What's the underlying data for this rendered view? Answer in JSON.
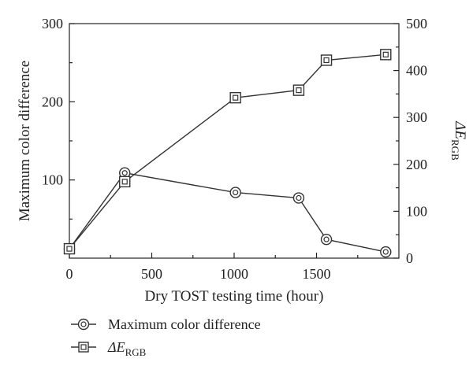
{
  "chart_data": {
    "type": "line",
    "xlabel": "Dry TOST testing time (hour)",
    "ylabel_left": "Maximum color difference",
    "ylabel_right_main": "ΔE",
    "ylabel_right_sub": "RGB",
    "xlim": [
      0,
      2000
    ],
    "ylim_left": [
      0,
      300
    ],
    "ylim_right": [
      0,
      500
    ],
    "x_ticks": [
      0,
      500,
      1000,
      1500
    ],
    "x_minor_ticks": [
      250,
      750,
      1250,
      1750
    ],
    "y_left_ticks": [
      100,
      200,
      300
    ],
    "y_left_minor_ticks": [
      50,
      150,
      250
    ],
    "y_right_ticks": [
      0,
      100,
      200,
      300,
      400,
      500
    ],
    "y_right_minor_ticks": [
      50,
      150,
      250,
      350,
      450
    ],
    "series": [
      {
        "name": "Maximum color difference",
        "axis": "left",
        "marker": "double-circle",
        "x": [
          0,
          336,
          1008,
          1392,
          1560,
          1920
        ],
        "y": [
          12,
          109,
          84,
          77,
          24,
          8
        ]
      },
      {
        "name_main": "ΔE",
        "name_sub": "RGB",
        "axis": "right",
        "marker": "double-square",
        "x": [
          0,
          336,
          1008,
          1392,
          1560,
          1920
        ],
        "y": [
          20,
          163,
          342,
          358,
          422,
          434
        ]
      }
    ],
    "legend_position": "bottom-left"
  }
}
